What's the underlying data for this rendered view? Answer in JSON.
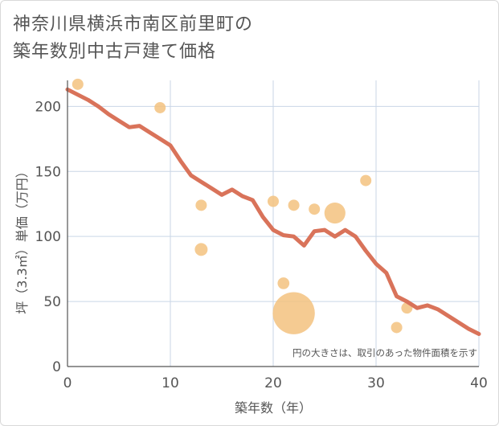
{
  "title": {
    "line1": "神奈川県横浜市南区前里町の",
    "line2": "築年数別中古戸建て価格"
  },
  "colors": {
    "line": "#d9735a",
    "bubble": "#f3c27f",
    "grid": "#c9d6e6",
    "axis": "#555555",
    "plot_bg": "#ffffff"
  },
  "chart_data": {
    "type": "scatter+line",
    "xlabel": "築年数（年）",
    "ylabel": "坪（3.3㎡）単価（万円）",
    "xlim": [
      0,
      40
    ],
    "ylim": [
      0,
      220
    ],
    "xticks": [
      0,
      10,
      20,
      30,
      40
    ],
    "yticks": [
      0,
      50,
      100,
      150,
      200
    ],
    "note": "円の大きさは、取引のあった物件面積を示す",
    "trend_line": {
      "x": [
        0,
        1,
        2,
        3,
        4,
        5,
        6,
        7,
        8,
        9,
        10,
        11,
        12,
        13,
        14,
        15,
        16,
        17,
        18,
        19,
        20,
        21,
        22,
        23,
        24,
        25,
        26,
        27,
        28,
        29,
        30,
        31,
        32,
        33,
        34,
        35,
        36,
        37,
        38,
        39,
        40
      ],
      "y": [
        213,
        209,
        205,
        200,
        194,
        189,
        184,
        185,
        180,
        175,
        170,
        158,
        147,
        142,
        137,
        132,
        136,
        131,
        128,
        115,
        105,
        101,
        100,
        93,
        104,
        105,
        100,
        105,
        100,
        89,
        79,
        72,
        54,
        50,
        45,
        47,
        44,
        39,
        34,
        29,
        25
      ]
    },
    "bubbles": [
      {
        "x": 1,
        "y": 217,
        "size": 1
      },
      {
        "x": 9,
        "y": 199,
        "size": 1
      },
      {
        "x": 13,
        "y": 124,
        "size": 1
      },
      {
        "x": 13,
        "y": 90,
        "size": 1.3
      },
      {
        "x": 20,
        "y": 127,
        "size": 1
      },
      {
        "x": 21,
        "y": 64,
        "size": 1.1
      },
      {
        "x": 22,
        "y": 41,
        "size": 14
      },
      {
        "x": 22,
        "y": 124,
        "size": 1
      },
      {
        "x": 24,
        "y": 121,
        "size": 1
      },
      {
        "x": 26,
        "y": 118,
        "size": 3.5
      },
      {
        "x": 29,
        "y": 143,
        "size": 1
      },
      {
        "x": 32,
        "y": 30,
        "size": 1
      },
      {
        "x": 33,
        "y": 45,
        "size": 1
      }
    ]
  }
}
